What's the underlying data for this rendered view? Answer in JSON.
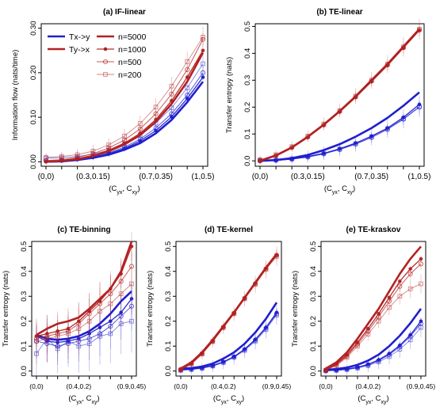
{
  "chart_data": [
    {
      "type": "line",
      "title": "(a) IF-linear",
      "ylabel": "Information flow (nats/time)",
      "xlabel_main": "(C",
      "xlabel_sub1": "yx",
      "xlabel_mid": ", C",
      "xlabel_sub2": "xy",
      "xlabel_end": ")",
      "x_ticks": [
        "(0,0)",
        "(0.3,0.15)",
        "(0.7,0.35)",
        "(1,0.5)"
      ],
      "y_ticks": [
        "0.00",
        "0.10",
        "0.20",
        "0.30"
      ],
      "ylim": [
        -0.01,
        0.31
      ],
      "x_count": 11,
      "legend_dir": [
        {
          "label": "Tx->y",
          "color": "#1f1fcf"
        },
        {
          "label": "Ty->x",
          "color": "#b22222"
        }
      ],
      "legend_n": [
        "n=5000",
        "n=1000",
        "n=500",
        "n=200"
      ],
      "series": [
        {
          "dir": "y",
          "n": "5000",
          "values": [
            0,
            0.001,
            0.004,
            0.009,
            0.016,
            0.027,
            0.042,
            0.064,
            0.094,
            0.134,
            0.18
          ]
        },
        {
          "dir": "y",
          "n": "1000",
          "values": [
            0,
            0.002,
            0.005,
            0.01,
            0.018,
            0.03,
            0.047,
            0.07,
            0.101,
            0.142,
            0.19
          ]
        },
        {
          "dir": "y",
          "n": "500",
          "values": [
            0.002,
            0.003,
            0.007,
            0.012,
            0.02,
            0.033,
            0.051,
            0.076,
            0.108,
            0.15,
            0.2
          ]
        },
        {
          "dir": "y",
          "n": "200",
          "values": [
            0.008,
            0.009,
            0.012,
            0.017,
            0.026,
            0.04,
            0.06,
            0.087,
            0.121,
            0.166,
            0.22
          ]
        },
        {
          "dir": "x",
          "n": "5000",
          "values": [
            0,
            0.002,
            0.006,
            0.013,
            0.024,
            0.039,
            0.06,
            0.09,
            0.13,
            0.18,
            0.245
          ]
        },
        {
          "dir": "x",
          "n": "1000",
          "values": [
            0,
            0.003,
            0.007,
            0.014,
            0.026,
            0.042,
            0.064,
            0.095,
            0.137,
            0.19,
            0.25
          ]
        },
        {
          "dir": "x",
          "n": "500",
          "values": [
            0.003,
            0.005,
            0.01,
            0.018,
            0.031,
            0.049,
            0.074,
            0.108,
            0.152,
            0.207,
            0.275
          ]
        },
        {
          "dir": "x",
          "n": "200",
          "values": [
            0.01,
            0.012,
            0.016,
            0.024,
            0.038,
            0.058,
            0.086,
            0.123,
            0.17,
            0.225,
            0.28
          ]
        }
      ]
    },
    {
      "type": "line",
      "title": "(b) TE-linear",
      "ylabel": "Transfer entropy (nats)",
      "xlabel_main": "(C",
      "xlabel_sub1": "yx",
      "xlabel_mid": ", C",
      "xlabel_sub2": "xy",
      "xlabel_end": ")",
      "x_ticks": [
        "(0,0)",
        "(0.3,0.15)",
        "(0.7,0.35)",
        "(1,0.5)"
      ],
      "y_ticks": [
        "0.0",
        "0.1",
        "0.2",
        "0.3",
        "0.4",
        "0.5"
      ],
      "ylim": [
        -0.02,
        0.51
      ],
      "x_count": 11,
      "series": [
        {
          "dir": "y",
          "n": "5000",
          "values": [
            0,
            0.003,
            0.01,
            0.022,
            0.04,
            0.062,
            0.09,
            0.122,
            0.16,
            0.205,
            0.255
          ]
        },
        {
          "dir": "y",
          "n": "1000",
          "values": [
            0,
            0.002,
            0.007,
            0.016,
            0.028,
            0.045,
            0.066,
            0.092,
            0.122,
            0.162,
            0.21
          ]
        },
        {
          "dir": "y",
          "n": "500",
          "values": [
            0,
            0.002,
            0.006,
            0.014,
            0.026,
            0.042,
            0.062,
            0.087,
            0.117,
            0.155,
            0.2
          ]
        },
        {
          "dir": "y",
          "n": "200",
          "values": [
            0.002,
            0.004,
            0.008,
            0.016,
            0.028,
            0.044,
            0.064,
            0.09,
            0.12,
            0.157,
            0.202
          ]
        },
        {
          "dir": "x",
          "n": "5000",
          "values": [
            0,
            0.02,
            0.05,
            0.09,
            0.135,
            0.185,
            0.24,
            0.3,
            0.36,
            0.425,
            0.49
          ]
        },
        {
          "dir": "x",
          "n": "1000",
          "values": [
            0,
            0.019,
            0.048,
            0.087,
            0.132,
            0.182,
            0.236,
            0.295,
            0.355,
            0.42,
            0.485
          ]
        },
        {
          "dir": "x",
          "n": "500",
          "values": [
            0.001,
            0.02,
            0.05,
            0.089,
            0.134,
            0.184,
            0.238,
            0.297,
            0.357,
            0.421,
            0.487
          ]
        },
        {
          "dir": "x",
          "n": "200",
          "values": [
            0.004,
            0.023,
            0.053,
            0.092,
            0.137,
            0.187,
            0.241,
            0.3,
            0.36,
            0.424,
            0.49
          ]
        }
      ]
    },
    {
      "type": "line",
      "title": "(c) TE-binning",
      "ylabel": "Transfer entropy (nats)",
      "xlabel_main": "(C",
      "xlabel_sub1": "yx",
      "xlabel_mid": ", C",
      "xlabel_sub2": "xy",
      "xlabel_end": ")",
      "x_ticks": [
        "(0,0)",
        "(0.4,0.2)",
        "(0.9,0.45)"
      ],
      "y_ticks": [
        "0.0",
        "0.1",
        "0.2",
        "0.3",
        "0.4",
        "0.5"
      ],
      "ylim": [
        -0.02,
        0.52
      ],
      "x_count": 10,
      "series": [
        {
          "dir": "y",
          "n": "5000",
          "values": [
            0.145,
            0.13,
            0.125,
            0.13,
            0.14,
            0.16,
            0.19,
            0.23,
            0.28,
            0.32
          ]
        },
        {
          "dir": "y",
          "n": "1000",
          "values": [
            0.14,
            0.12,
            0.115,
            0.12,
            0.13,
            0.15,
            0.175,
            0.2,
            0.235,
            0.29
          ]
        },
        {
          "dir": "y",
          "n": "500",
          "values": [
            0.12,
            0.11,
            0.1,
            0.11,
            0.12,
            0.13,
            0.15,
            0.18,
            0.22,
            0.26
          ]
        },
        {
          "dir": "y",
          "n": "200",
          "values": [
            0.07,
            0.13,
            0.09,
            0.12,
            0.1,
            0.11,
            0.14,
            0.15,
            0.19,
            0.2
          ]
        },
        {
          "dir": "x",
          "n": "5000",
          "values": [
            0.145,
            0.17,
            0.19,
            0.2,
            0.215,
            0.25,
            0.29,
            0.33,
            0.4,
            0.52
          ]
        },
        {
          "dir": "x",
          "n": "1000",
          "values": [
            0.14,
            0.15,
            0.16,
            0.17,
            0.2,
            0.24,
            0.28,
            0.33,
            0.39,
            0.5
          ]
        },
        {
          "dir": "x",
          "n": "500",
          "values": [
            0.13,
            0.14,
            0.15,
            0.16,
            0.19,
            0.23,
            0.27,
            0.31,
            0.36,
            0.42
          ]
        },
        {
          "dir": "x",
          "n": "200",
          "values": [
            0.12,
            0.13,
            0.14,
            0.15,
            0.17,
            0.2,
            0.24,
            0.27,
            0.31,
            0.35
          ]
        }
      ]
    },
    {
      "type": "line",
      "title": "(d) TE-kernel",
      "ylabel": "Transfer entropy (nats)",
      "xlabel_main": "(C",
      "xlabel_sub1": "yx",
      "xlabel_mid": ", C",
      "xlabel_sub2": "xy",
      "xlabel_end": ")",
      "x_ticks": [
        "(0,0)",
        "(0.4,0.2)",
        "(0.9,0.45)"
      ],
      "y_ticks": [
        "0.0",
        "0.1",
        "0.2",
        "0.3",
        "0.4",
        "0.5"
      ],
      "ylim": [
        -0.02,
        0.52
      ],
      "x_count": 10,
      "series": [
        {
          "dir": "y",
          "n": "5000",
          "values": [
            0.01,
            0.012,
            0.018,
            0.03,
            0.05,
            0.075,
            0.11,
            0.155,
            0.21,
            0.275
          ]
        },
        {
          "dir": "y",
          "n": "1000",
          "values": [
            0.005,
            0.008,
            0.013,
            0.022,
            0.037,
            0.058,
            0.088,
            0.127,
            0.175,
            0.235
          ]
        },
        {
          "dir": "y",
          "n": "500",
          "values": [
            0.004,
            0.007,
            0.012,
            0.021,
            0.036,
            0.057,
            0.086,
            0.124,
            0.172,
            0.23
          ]
        },
        {
          "dir": "y",
          "n": "200",
          "values": [
            0.003,
            0.006,
            0.011,
            0.02,
            0.034,
            0.055,
            0.083,
            0.12,
            0.167,
            0.225
          ]
        },
        {
          "dir": "x",
          "n": "5000",
          "values": [
            0.01,
            0.035,
            0.075,
            0.125,
            0.18,
            0.235,
            0.295,
            0.355,
            0.415,
            0.47
          ]
        },
        {
          "dir": "x",
          "n": "1000",
          "values": [
            0.006,
            0.03,
            0.07,
            0.12,
            0.176,
            0.232,
            0.292,
            0.352,
            0.412,
            0.465
          ]
        },
        {
          "dir": "x",
          "n": "500",
          "values": [
            0.006,
            0.03,
            0.07,
            0.12,
            0.176,
            0.232,
            0.292,
            0.35,
            0.41,
            0.465
          ]
        },
        {
          "dir": "x",
          "n": "200",
          "values": [
            0.005,
            0.028,
            0.068,
            0.118,
            0.174,
            0.23,
            0.29,
            0.348,
            0.408,
            0.46
          ]
        }
      ]
    },
    {
      "type": "line",
      "title": "(e) TE-kraskov",
      "ylabel": "Transfer entropy (nats)",
      "xlabel_main": "(C",
      "xlabel_sub1": "yx",
      "xlabel_mid": ", C",
      "xlabel_sub2": "xy",
      "xlabel_end": ")",
      "x_ticks": [
        "(0,0)",
        "(0.4,0.2)",
        "(0.9,0.45)"
      ],
      "y_ticks": [
        "0.0",
        "0.1",
        "0.2",
        "0.3",
        "0.4",
        "0.5"
      ],
      "ylim": [
        -0.02,
        0.52
      ],
      "x_count": 10,
      "series": [
        {
          "dir": "y",
          "n": "5000",
          "values": [
            0.005,
            0.008,
            0.014,
            0.025,
            0.042,
            0.066,
            0.1,
            0.142,
            0.192,
            0.25
          ]
        },
        {
          "dir": "y",
          "n": "1000",
          "values": [
            0.002,
            0.004,
            0.008,
            0.015,
            0.027,
            0.045,
            0.07,
            0.103,
            0.145,
            0.2
          ]
        },
        {
          "dir": "y",
          "n": "500",
          "values": [
            0.001,
            0.003,
            0.007,
            0.014,
            0.025,
            0.042,
            0.066,
            0.098,
            0.14,
            0.19
          ]
        },
        {
          "dir": "y",
          "n": "200",
          "values": [
            0.001,
            0.003,
            0.006,
            0.012,
            0.022,
            0.037,
            0.058,
            0.087,
            0.125,
            0.175
          ]
        },
        {
          "dir": "x",
          "n": "5000",
          "values": [
            0.01,
            0.035,
            0.075,
            0.13,
            0.19,
            0.25,
            0.32,
            0.39,
            0.45,
            0.5
          ]
        },
        {
          "dir": "x",
          "n": "1000",
          "values": [
            0.005,
            0.028,
            0.065,
            0.115,
            0.17,
            0.23,
            0.295,
            0.36,
            0.41,
            0.45
          ]
        },
        {
          "dir": "x",
          "n": "500",
          "values": [
            0.004,
            0.025,
            0.06,
            0.108,
            0.16,
            0.218,
            0.28,
            0.34,
            0.39,
            0.43
          ]
        },
        {
          "dir": "x",
          "n": "200",
          "values": [
            0.003,
            0.022,
            0.055,
            0.1,
            0.148,
            0.2,
            0.255,
            0.3,
            0.33,
            0.35
          ]
        }
      ]
    }
  ],
  "colors": {
    "dir_y": "#1f1fcf",
    "dir_x": "#b22222",
    "axis": "#000000"
  }
}
